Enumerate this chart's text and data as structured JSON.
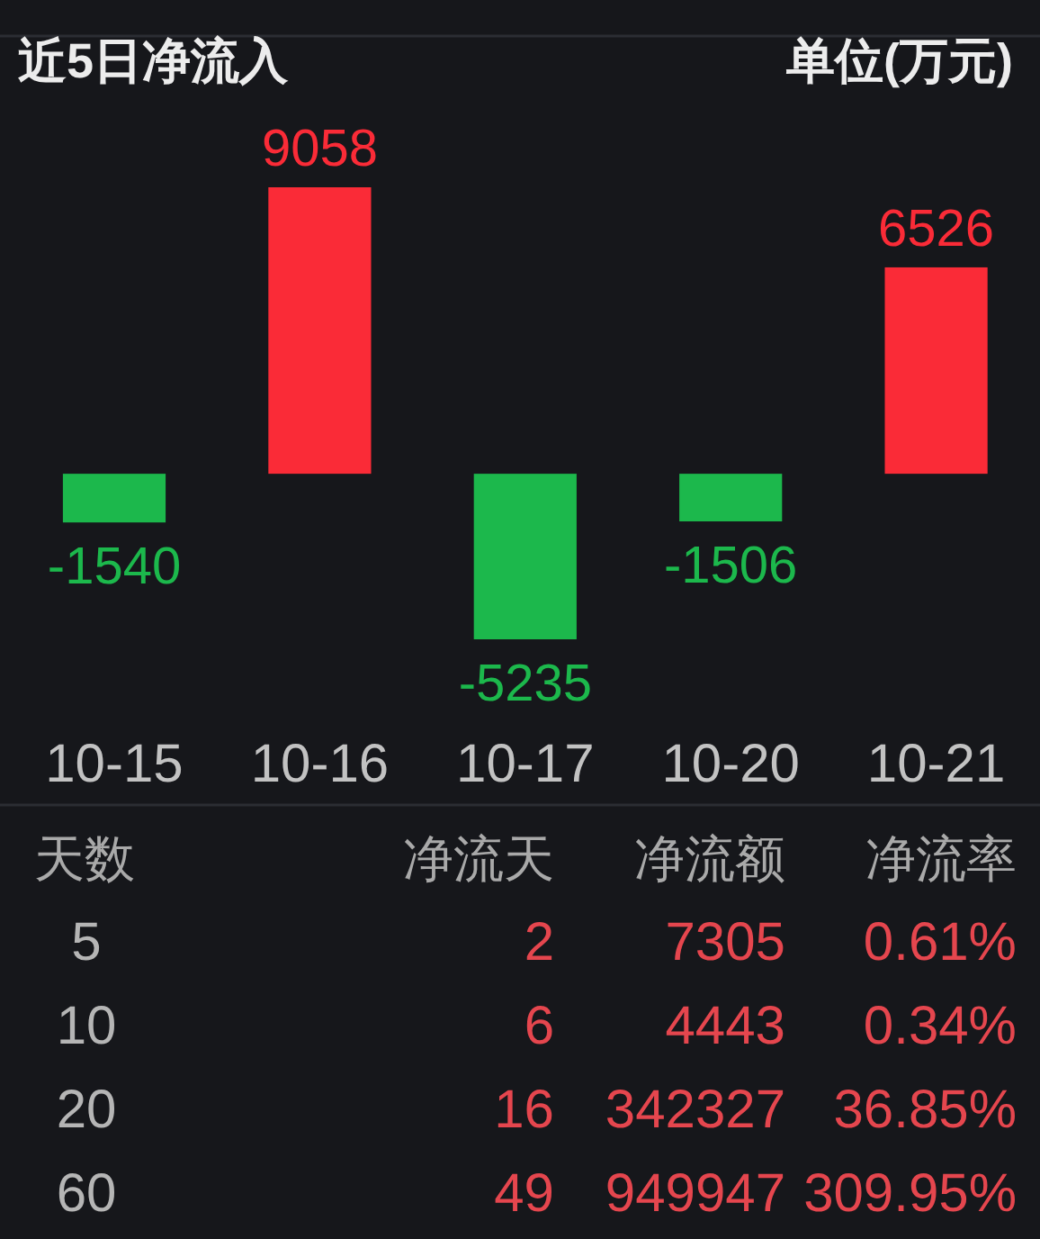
{
  "chart_data": [
    {
      "type": "bar",
      "title": "近5日净流入",
      "subtitle": "单位(万元)",
      "categories": [
        "10-15",
        "10-16",
        "10-17",
        "10-20",
        "10-21"
      ],
      "values": [
        -1540,
        9058,
        -5235,
        -1506,
        6526
      ],
      "colors": [
        "#1cb84c",
        "#fa2b37",
        "#1cb84c",
        "#1cb84c",
        "#fa2b37"
      ],
      "data_labels": true
    },
    {
      "type": "other",
      "ylabel": "天数",
      "categories": [
        "5",
        "10",
        "20",
        "60"
      ],
      "series": [
        {
          "name": "净流天",
          "values": [
            2,
            6,
            16,
            49
          ]
        },
        {
          "name": "净流额",
          "values": [
            7305,
            4443,
            342327,
            949947
          ]
        },
        {
          "name": "净流率",
          "values": [
            0.61,
            0.34,
            36.85,
            309.95
          ],
          "value_labels": [
            "0.61%",
            "0.34%",
            "36.85%",
            "309.95%"
          ]
        }
      ],
      "data_labels": true
    }
  ]
}
